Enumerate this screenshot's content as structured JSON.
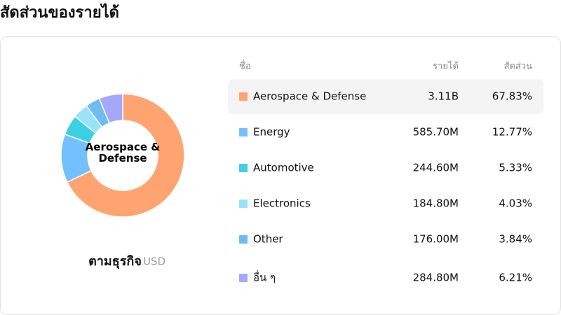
{
  "header": {
    "title": "สัดส่วนของรายได้"
  },
  "chart_data": {
    "type": "pie",
    "subtitle": "ตามธุรกิจ",
    "unit": "USD",
    "columns": [
      "ชื่อ",
      "รายได้",
      "สัดส่วน"
    ],
    "categories": [
      "Aerospace & Defense",
      "Energy",
      "Automotive",
      "Electronics",
      "Other",
      "อื่น ๆ"
    ],
    "revenue": [
      "3.11B",
      "585.70M",
      "244.60M",
      "184.80M",
      "176.00M",
      "284.80M"
    ],
    "values": [
      67.83,
      12.77,
      5.33,
      4.03,
      3.84,
      6.21
    ],
    "value_labels": [
      "67.83%",
      "12.77%",
      "5.33%",
      "4.03%",
      "3.84%",
      "6.21%"
    ],
    "colors": [
      "#ffa470",
      "#74c0fc",
      "#3bd0e6",
      "#99e2f8",
      "#6fbcf5",
      "#a3a8fb"
    ]
  }
}
